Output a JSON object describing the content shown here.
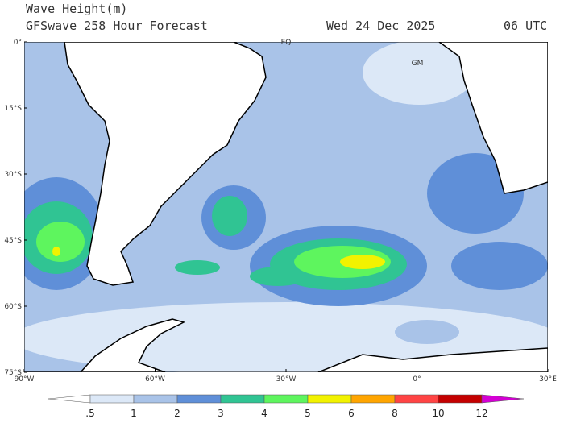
{
  "header": {
    "title": "Wave Height(m)",
    "subtitle": "GFSwave 258 Hour Forecast",
    "date": "Wed 24 Dec 2025",
    "time": "06 UTC"
  },
  "map": {
    "lat_labels": [
      "0°",
      "15°S",
      "30°S",
      "45°S",
      "60°S",
      "75°S"
    ],
    "lon_labels": [
      "90°W",
      "60°W",
      "30°W",
      "0°",
      "30°E"
    ],
    "annotations": [
      "EQ",
      "GM"
    ]
  },
  "colorbar": {
    "levels": [
      {
        "value": 0.5,
        "label": ".5"
      },
      1,
      2,
      3,
      4,
      5,
      6,
      8,
      10,
      12
    ],
    "colors": [
      "#ffffff",
      "#dce8f7",
      "#a9c3e8",
      "#5f8fd8",
      "#30c493",
      "#5ef55e",
      "#f2f200",
      "#ffa500",
      "#ff4444",
      "#c40000",
      "#d400d4"
    ]
  }
}
